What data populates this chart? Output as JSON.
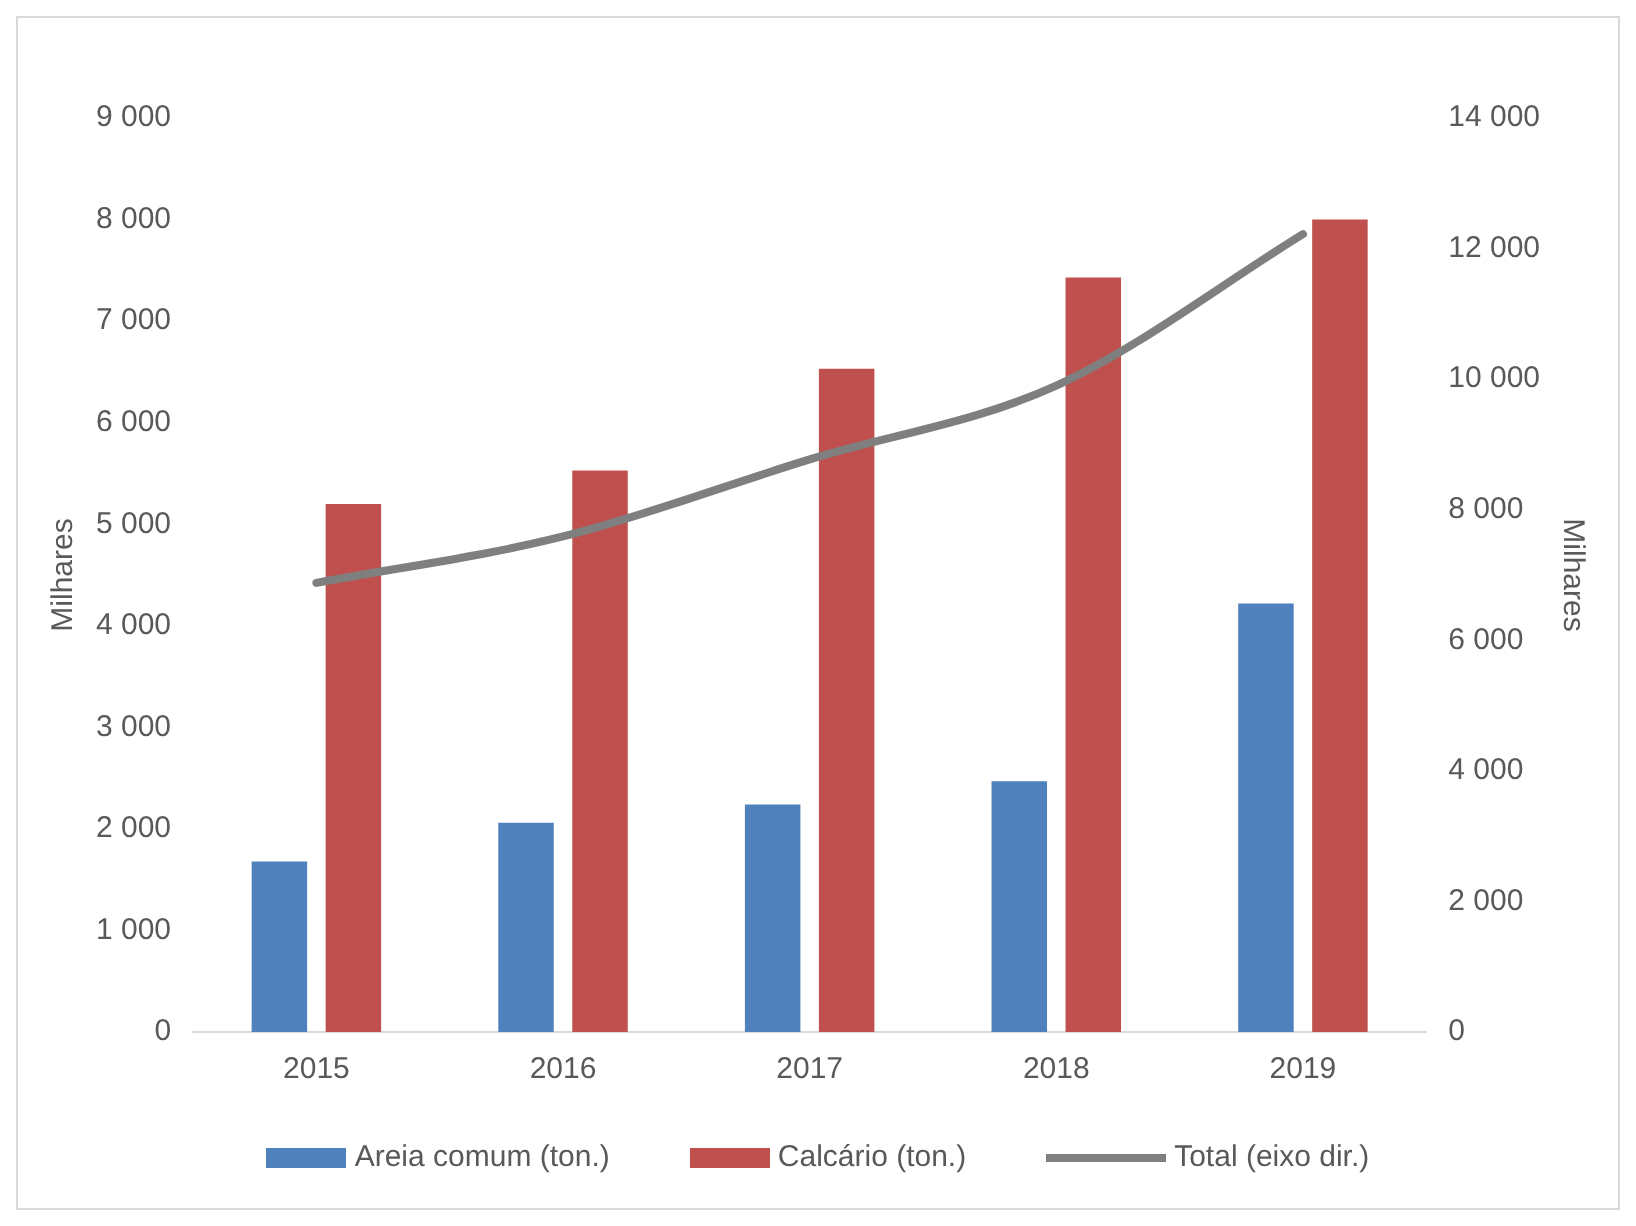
{
  "chart_data": {
    "type": "bar",
    "categories": [
      "2015",
      "2016",
      "2017",
      "2018",
      "2019"
    ],
    "series": [
      {
        "name": "Areia comum (ton.)",
        "color": "#4f81bd",
        "values": [
          1680,
          2060,
          2240,
          2470,
          4220
        ]
      },
      {
        "name": "Calcário (ton.)",
        "color": "#c0504d",
        "values": [
          5200,
          5530,
          6530,
          7430,
          8000
        ]
      },
      {
        "name": "Total (eixo dir.)",
        "type": "line",
        "axis": "y2",
        "color": "#7f7f7f",
        "values": [
          6880,
          7590,
          8770,
          9900,
          12220
        ]
      }
    ],
    "ylabel": "Milhares",
    "y2label": "Milhares",
    "ylim": [
      0,
      9000
    ],
    "yticks": [
      0,
      {
        "value": 1000,
        "label": "1 000"
      },
      {
        "value": 2000,
        "label": "2 000"
      },
      {
        "value": 3000,
        "label": "3 000"
      },
      {
        "value": 4000,
        "label": "4 000"
      },
      {
        "value": 5000,
        "label": "5 000"
      },
      {
        "value": 6000,
        "label": "6 000"
      },
      {
        "value": 7000,
        "label": "7 000"
      },
      {
        "value": 8000,
        "label": "8 000"
      },
      {
        "value": 9000,
        "label": "9 000"
      }
    ],
    "y2lim": [
      0,
      14000
    ],
    "y2ticks": [
      0,
      {
        "value": 2000,
        "label": "2 000"
      },
      {
        "value": 4000,
        "label": "4 000"
      },
      {
        "value": 6000,
        "label": "6 000"
      },
      {
        "value": 8000,
        "label": "8 000"
      },
      {
        "value": 10000,
        "label": "10 000"
      },
      {
        "value": 12000,
        "label": "12 000"
      },
      {
        "value": 14000,
        "label": "14 000"
      }
    ],
    "grid": false,
    "legend": "bottom",
    "marker": "none",
    "line_style": "solid"
  }
}
